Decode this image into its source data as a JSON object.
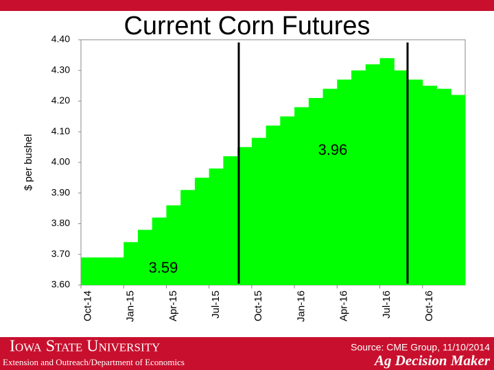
{
  "chart_data": {
    "type": "step-bar",
    "title": "Current Corn Futures",
    "y_label": "$ per bushel",
    "categories": [
      "Oct-14",
      null,
      null,
      "Jan-15",
      null,
      null,
      "Apr-15",
      null,
      null,
      "Jul-15",
      null,
      null,
      "Oct-15",
      null,
      null,
      "Jan-16",
      null,
      null,
      "Apr-16",
      null,
      null,
      "Jul-16",
      null,
      null,
      "Oct-16",
      null,
      null
    ],
    "values": [
      3.69,
      3.69,
      3.69,
      3.74,
      3.78,
      3.82,
      3.86,
      3.91,
      3.95,
      3.98,
      4.02,
      4.05,
      4.08,
      4.12,
      4.15,
      4.18,
      4.21,
      4.24,
      4.27,
      4.3,
      4.32,
      4.34,
      4.3,
      4.27,
      4.25,
      4.24,
      4.22
    ],
    "color": "#00ff00",
    "ylim": [
      3.6,
      4.4
    ],
    "yticks": [
      {
        "value": 3.6,
        "label": "3.60"
      },
      {
        "value": 3.7,
        "label": "3.70"
      },
      {
        "value": 3.8,
        "label": "3.80"
      },
      {
        "value": 3.9,
        "label": "3.90"
      },
      {
        "value": 4.0,
        "label": "4.00"
      },
      {
        "value": 4.1,
        "label": "4.10"
      },
      {
        "value": 4.2,
        "label": "4.20"
      },
      {
        "value": 4.3,
        "label": "4.30"
      },
      {
        "value": 4.4,
        "label": "4.40"
      }
    ],
    "grid": false,
    "annotations": [
      "3.96",
      "3.59"
    ]
  },
  "footer": {
    "university": "Iowa State University",
    "department": "Extension and Outreach/Department of Economics",
    "source": "Source: CME Group, 11/10/2014",
    "brand": "Ag Decision Maker"
  }
}
